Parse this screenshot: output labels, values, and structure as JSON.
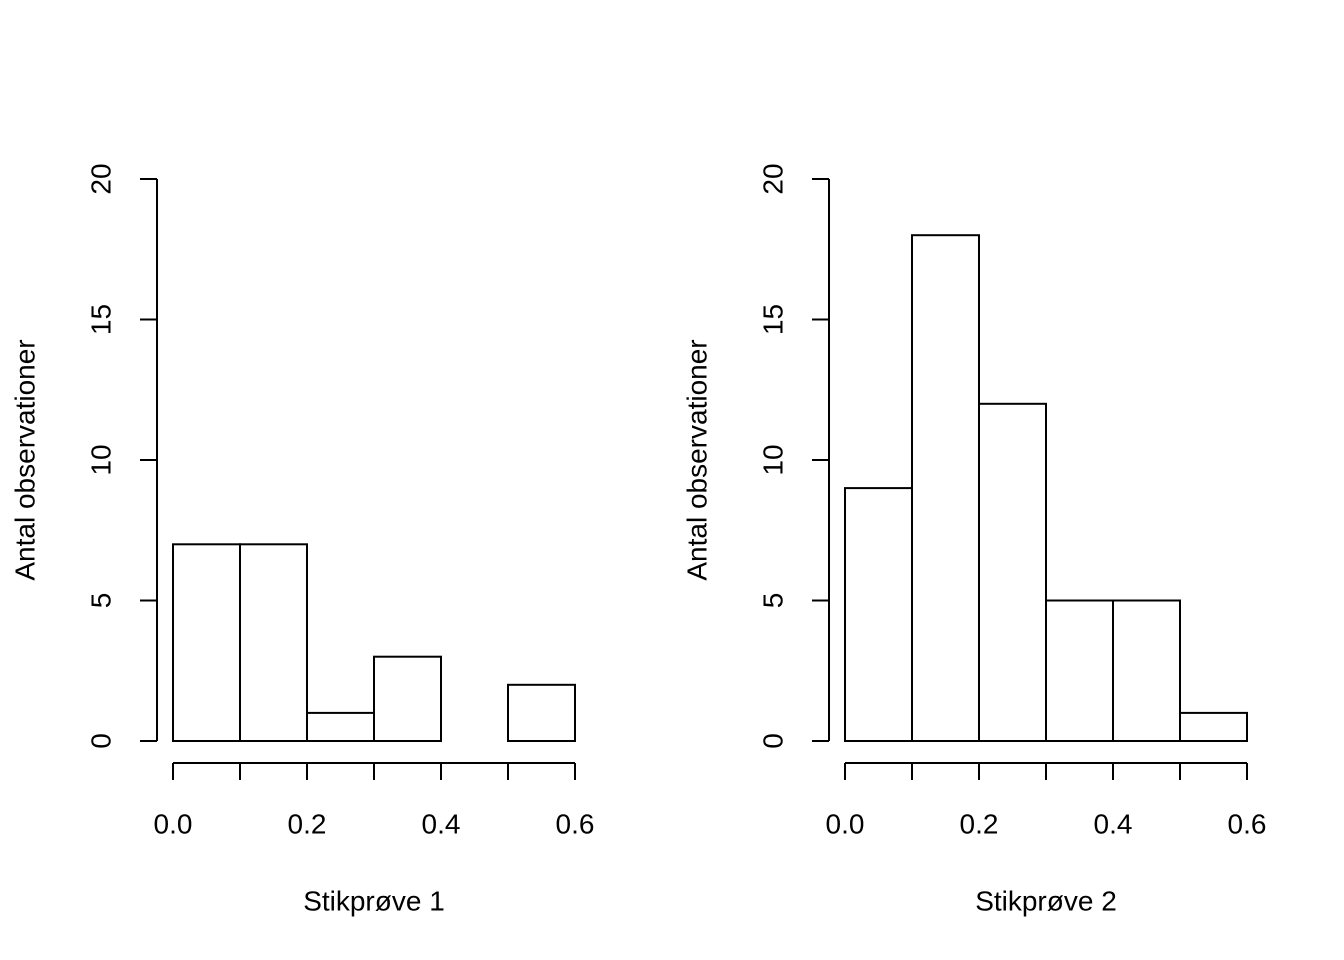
{
  "chart_data": [
    {
      "type": "bar",
      "subtype": "histogram",
      "title": "",
      "xlabel": "Stikprøve 1",
      "ylabel": "Antal observationer",
      "bin_edges": [
        0.0,
        0.1,
        0.2,
        0.3,
        0.4,
        0.5,
        0.6
      ],
      "counts": [
        7,
        7,
        1,
        3,
        0,
        2
      ],
      "xlim": [
        0.0,
        0.6
      ],
      "ylim": [
        0,
        20
      ],
      "x_ticks": [
        0.0,
        0.1,
        0.2,
        0.3,
        0.4,
        0.5,
        0.6
      ],
      "x_tick_labels": [
        "0.0",
        "",
        "0.2",
        "",
        "0.4",
        "",
        "0.6"
      ],
      "y_ticks": [
        0,
        5,
        10,
        15,
        20
      ],
      "y_tick_labels": [
        "0",
        "5",
        "10",
        "15",
        "20"
      ],
      "bar_fill": "#ffffff",
      "bar_stroke": "#000000",
      "grid": false
    },
    {
      "type": "bar",
      "subtype": "histogram",
      "title": "",
      "xlabel": "Stikprøve 2",
      "ylabel": "Antal observationer",
      "bin_edges": [
        0.0,
        0.1,
        0.2,
        0.3,
        0.4,
        0.5,
        0.6
      ],
      "counts": [
        9,
        18,
        12,
        5,
        5,
        1
      ],
      "xlim": [
        0.0,
        0.6
      ],
      "ylim": [
        0,
        20
      ],
      "x_ticks": [
        0.0,
        0.1,
        0.2,
        0.3,
        0.4,
        0.5,
        0.6
      ],
      "x_tick_labels": [
        "0.0",
        "",
        "0.2",
        "",
        "0.4",
        "",
        "0.6"
      ],
      "y_ticks": [
        0,
        5,
        10,
        15,
        20
      ],
      "y_tick_labels": [
        "0",
        "5",
        "10",
        "15",
        "20"
      ],
      "bar_fill": "#ffffff",
      "bar_stroke": "#000000",
      "grid": false
    }
  ]
}
